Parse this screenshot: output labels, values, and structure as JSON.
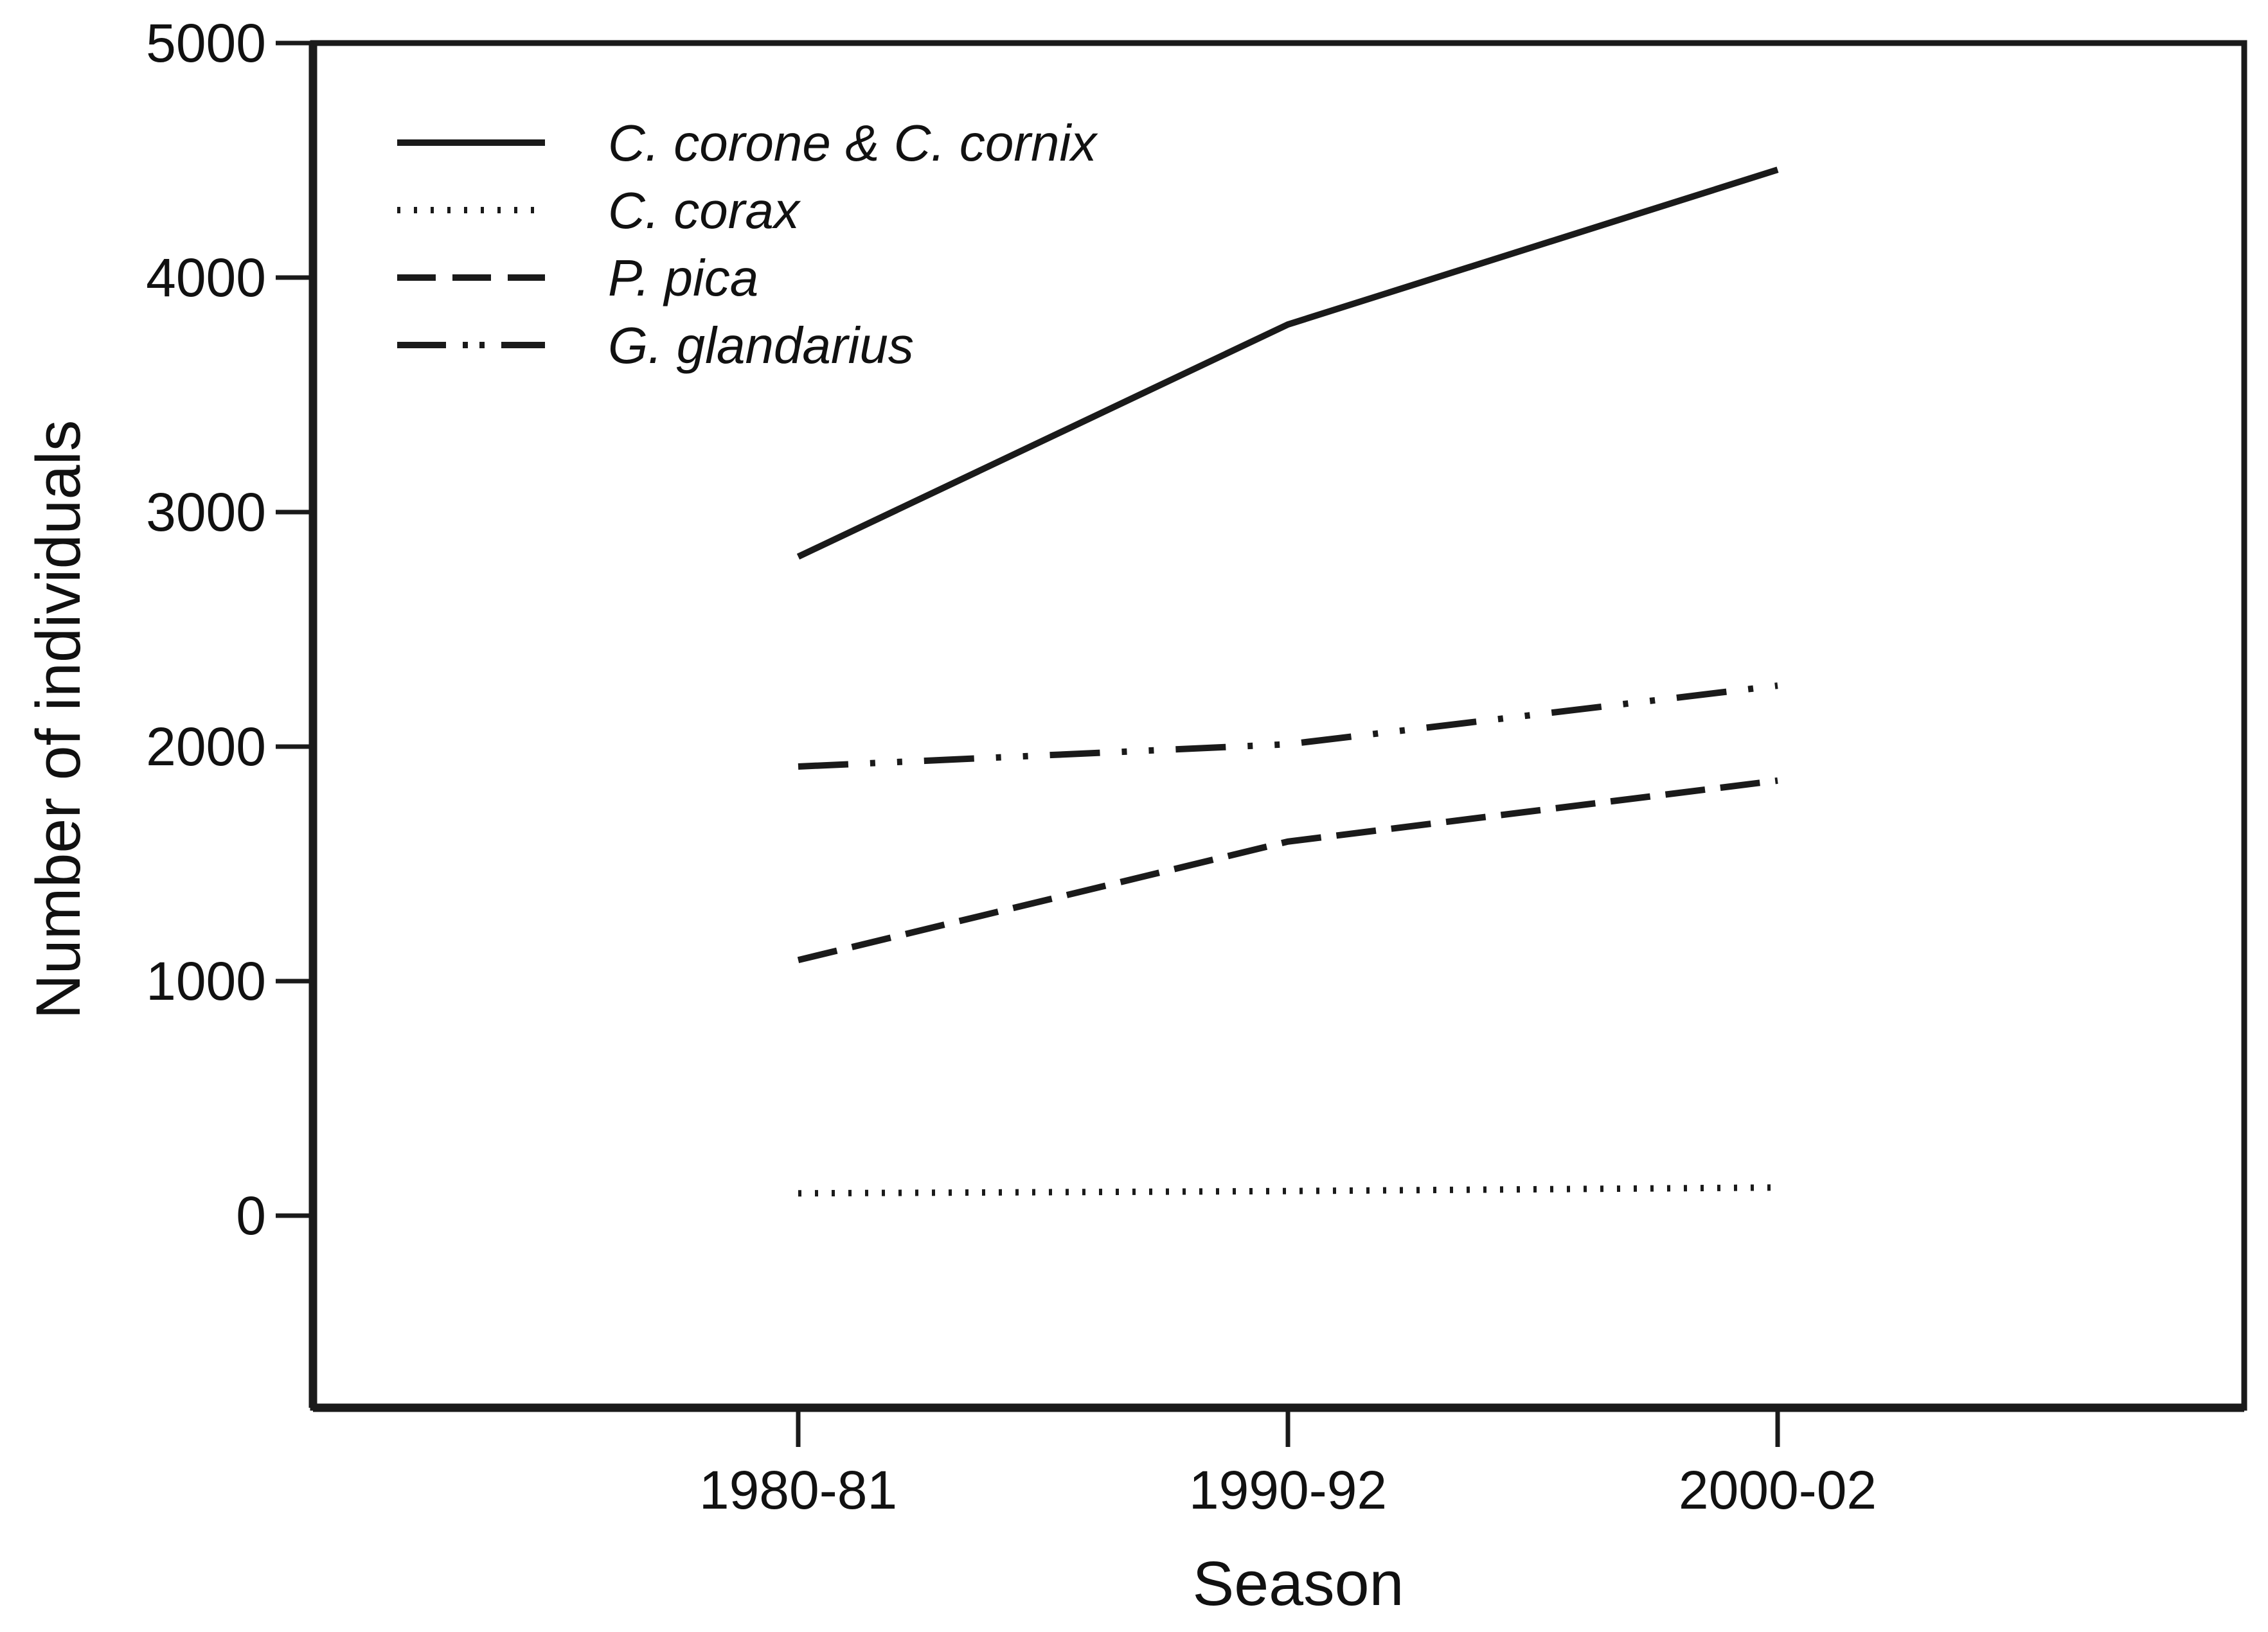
{
  "figure": {
    "background": "#ffffff",
    "ink_color": "#1a1a1a"
  },
  "chart_data": {
    "type": "line",
    "title": "",
    "xlabel": "Season",
    "ylabel": "Number of individuals",
    "categories": [
      "1980-81",
      "1990-92",
      "2000-02"
    ],
    "series": [
      {
        "name": "C. corone & C. cornix",
        "line_style": "solid",
        "values": [
          2810,
          3800,
          4460
        ]
      },
      {
        "name": "C. corax",
        "line_style": "dotted",
        "values": [
          95,
          105,
          120
        ]
      },
      {
        "name": "P. pica",
        "line_style": "dashed",
        "values": [
          1090,
          1595,
          1855
        ]
      },
      {
        "name": "G. glandarius",
        "line_style": "dash-dot-dot",
        "values": [
          1915,
          2010,
          2260
        ]
      }
    ],
    "yticks": [
      5000,
      4000,
      3000,
      2000,
      1000,
      0
    ],
    "ylim": [
      -820,
      5000
    ],
    "grid": false,
    "legend_position": "top-left-inside",
    "line_color": "#1a1a1a",
    "background": "#ffffff"
  }
}
